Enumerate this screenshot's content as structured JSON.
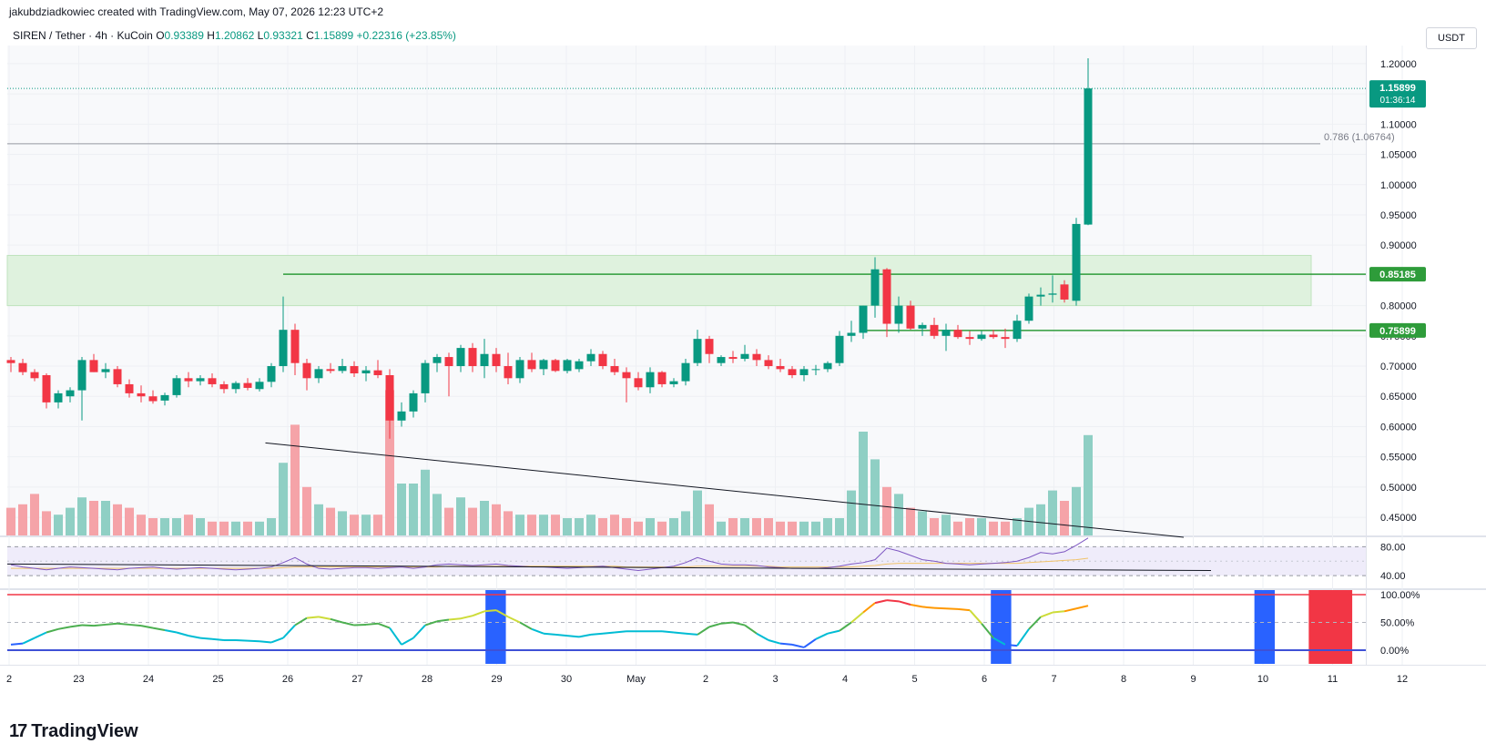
{
  "header": {
    "caption": "jakubdziadkowiec created with TradingView.com, May 07, 2026 12:23 UTC+2",
    "symbol": "SIREN / Tether · 4h · KuCoin",
    "o_label": "O",
    "o": "0.93389",
    "h_label": "H",
    "h": "1.20862",
    "l_label": "L",
    "l": "0.93321",
    "c_label": "C",
    "c": "1.15899",
    "change": "+0.22316 (+23.85%)",
    "currency": "USDT"
  },
  "logo": {
    "text": "TradingView",
    "icon": "tradingview-logo-icon"
  },
  "colors": {
    "up": "#089981",
    "down": "#f23645",
    "upVol": "#8fcfc4",
    "downVol": "#f5a3a8",
    "zone": "#dff2de",
    "level": "#2e9c3a"
  },
  "chart_data": [
    {
      "type": "candlestick",
      "x_ticks": [
        "2",
        "23",
        "24",
        "25",
        "26",
        "27",
        "28",
        "29",
        "30",
        "May",
        "2",
        "3",
        "4",
        "5",
        "6",
        "7",
        "8",
        "9",
        "10",
        "11",
        "12"
      ],
      "y_ticks": [
        "1.20000",
        "1.15000",
        "1.10000",
        "1.05000",
        "1.00000",
        "0.95000",
        "0.90000",
        "0.85000",
        "0.80000",
        "0.75000",
        "0.70000",
        "0.65000",
        "0.60000",
        "0.55000",
        "0.50000",
        "0.45000"
      ],
      "ylim": [
        0.42,
        1.23
      ],
      "last_price": "1.15899",
      "countdown": "01:36:14",
      "levels": [
        {
          "label": "0.85185",
          "value": 0.85185
        },
        {
          "label": "0.75899",
          "value": 0.75899
        }
      ],
      "fib": {
        "label": "0.786 (1.06764)",
        "value": 1.06764
      },
      "zone": [
        0.8,
        0.883
      ],
      "trendline": [
        [
          0.5846,
          0.573
        ],
        [
          1.0,
          0.417
        ]
      ],
      "candles": [
        [
          0.71,
          0.715,
          0.69,
          0.705
        ],
        [
          0.705,
          0.712,
          0.685,
          0.69
        ],
        [
          0.69,
          0.695,
          0.675,
          0.68
        ],
        [
          0.685,
          0.688,
          0.63,
          0.64
        ],
        [
          0.64,
          0.66,
          0.63,
          0.655
        ],
        [
          0.65,
          0.665,
          0.64,
          0.66
        ],
        [
          0.66,
          0.715,
          0.61,
          0.71
        ],
        [
          0.71,
          0.72,
          0.69,
          0.69
        ],
        [
          0.69,
          0.705,
          0.68,
          0.695
        ],
        [
          0.695,
          0.7,
          0.665,
          0.67
        ],
        [
          0.67,
          0.678,
          0.648,
          0.655
        ],
        [
          0.655,
          0.668,
          0.64,
          0.65
        ],
        [
          0.65,
          0.66,
          0.638,
          0.642
        ],
        [
          0.643,
          0.656,
          0.635,
          0.652
        ],
        [
          0.652,
          0.685,
          0.648,
          0.68
        ],
        [
          0.68,
          0.69,
          0.665,
          0.675
        ],
        [
          0.675,
          0.685,
          0.668,
          0.68
        ],
        [
          0.68,
          0.688,
          0.665,
          0.67
        ],
        [
          0.67,
          0.675,
          0.655,
          0.662
        ],
        [
          0.662,
          0.675,
          0.655,
          0.672
        ],
        [
          0.672,
          0.68,
          0.66,
          0.664
        ],
        [
          0.662,
          0.68,
          0.658,
          0.674
        ],
        [
          0.674,
          0.705,
          0.665,
          0.7
        ],
        [
          0.7,
          0.815,
          0.69,
          0.76
        ],
        [
          0.76,
          0.77,
          0.685,
          0.705
        ],
        [
          0.705,
          0.712,
          0.66,
          0.68
        ],
        [
          0.68,
          0.7,
          0.672,
          0.695
        ],
        [
          0.695,
          0.705,
          0.688,
          0.692
        ],
        [
          0.692,
          0.712,
          0.688,
          0.7
        ],
        [
          0.7,
          0.708,
          0.682,
          0.688
        ],
        [
          0.688,
          0.7,
          0.675,
          0.693
        ],
        [
          0.693,
          0.71,
          0.68,
          0.685
        ],
        [
          0.685,
          0.695,
          0.58,
          0.61
        ],
        [
          0.61,
          0.64,
          0.6,
          0.625
        ],
        [
          0.625,
          0.66,
          0.615,
          0.655
        ],
        [
          0.655,
          0.71,
          0.64,
          0.705
        ],
        [
          0.705,
          0.72,
          0.69,
          0.715
        ],
        [
          0.715,
          0.722,
          0.65,
          0.7
        ],
        [
          0.7,
          0.735,
          0.69,
          0.73
        ],
        [
          0.73,
          0.738,
          0.69,
          0.7
        ],
        [
          0.7,
          0.745,
          0.68,
          0.72
        ],
        [
          0.72,
          0.73,
          0.69,
          0.7
        ],
        [
          0.7,
          0.722,
          0.67,
          0.68
        ],
        [
          0.68,
          0.715,
          0.672,
          0.71
        ],
        [
          0.71,
          0.722,
          0.69,
          0.695
        ],
        [
          0.695,
          0.712,
          0.685,
          0.71
        ],
        [
          0.71,
          0.712,
          0.69,
          0.692
        ],
        [
          0.692,
          0.712,
          0.688,
          0.71
        ],
        [
          0.695,
          0.712,
          0.69,
          0.708
        ],
        [
          0.708,
          0.728,
          0.7,
          0.72
        ],
        [
          0.72,
          0.725,
          0.695,
          0.7
        ],
        [
          0.7,
          0.712,
          0.685,
          0.69
        ],
        [
          0.69,
          0.698,
          0.64,
          0.68
        ],
        [
          0.68,
          0.69,
          0.66,
          0.665
        ],
        [
          0.665,
          0.698,
          0.655,
          0.69
        ],
        [
          0.69,
          0.692,
          0.665,
          0.67
        ],
        [
          0.67,
          0.68,
          0.665,
          0.675
        ],
        [
          0.675,
          0.712,
          0.668,
          0.705
        ],
        [
          0.705,
          0.76,
          0.7,
          0.745
        ],
        [
          0.745,
          0.75,
          0.705,
          0.72
        ],
        [
          0.705,
          0.718,
          0.7,
          0.715
        ],
        [
          0.715,
          0.725,
          0.705,
          0.712
        ],
        [
          0.712,
          0.735,
          0.708,
          0.72
        ],
        [
          0.72,
          0.728,
          0.7,
          0.71
        ],
        [
          0.71,
          0.718,
          0.695,
          0.7
        ],
        [
          0.7,
          0.712,
          0.69,
          0.695
        ],
        [
          0.695,
          0.7,
          0.68,
          0.685
        ],
        [
          0.685,
          0.7,
          0.675,
          0.695
        ],
        [
          0.695,
          0.702,
          0.685,
          0.695
        ],
        [
          0.695,
          0.708,
          0.69,
          0.705
        ],
        [
          0.705,
          0.758,
          0.7,
          0.75
        ],
        [
          0.75,
          0.775,
          0.74,
          0.755
        ],
        [
          0.755,
          0.8,
          0.745,
          0.8
        ],
        [
          0.8,
          0.88,
          0.78,
          0.86
        ],
        [
          0.86,
          0.862,
          0.748,
          0.77
        ],
        [
          0.77,
          0.815,
          0.755,
          0.8
        ],
        [
          0.8,
          0.808,
          0.76,
          0.762
        ],
        [
          0.762,
          0.772,
          0.75,
          0.768
        ],
        [
          0.768,
          0.78,
          0.745,
          0.75
        ],
        [
          0.75,
          0.77,
          0.725,
          0.76
        ],
        [
          0.76,
          0.768,
          0.745,
          0.748
        ],
        [
          0.748,
          0.758,
          0.735,
          0.745
        ],
        [
          0.745,
          0.758,
          0.742,
          0.752
        ],
        [
          0.752,
          0.76,
          0.745,
          0.748
        ],
        [
          0.748,
          0.762,
          0.73,
          0.745
        ],
        [
          0.745,
          0.785,
          0.74,
          0.775
        ],
        [
          0.775,
          0.82,
          0.77,
          0.815
        ],
        [
          0.815,
          0.83,
          0.8,
          0.818
        ],
        [
          0.818,
          0.85,
          0.805,
          0.82
        ],
        [
          0.835,
          0.842,
          0.805,
          0.81
        ],
        [
          0.808,
          0.945,
          0.8,
          0.935
        ],
        [
          0.934,
          1.209,
          0.933,
          1.159
        ]
      ],
      "volume_levels": [
        0.08,
        0.09,
        0.12,
        0.07,
        0.06,
        0.08,
        0.11,
        0.1,
        0.1,
        0.09,
        0.08,
        0.06,
        0.05,
        0.05,
        0.05,
        0.06,
        0.05,
        0.04,
        0.04,
        0.04,
        0.04,
        0.04,
        0.05,
        0.21,
        0.32,
        0.14,
        0.09,
        0.08,
        0.07,
        0.06,
        0.06,
        0.06,
        0.42,
        0.15,
        0.15,
        0.19,
        0.12,
        0.08,
        0.11,
        0.08,
        0.1,
        0.09,
        0.07,
        0.06,
        0.06,
        0.06,
        0.06,
        0.05,
        0.05,
        0.06,
        0.05,
        0.06,
        0.05,
        0.04,
        0.05,
        0.04,
        0.05,
        0.07,
        0.13,
        0.09,
        0.04,
        0.05,
        0.05,
        0.05,
        0.05,
        0.04,
        0.04,
        0.04,
        0.04,
        0.05,
        0.05,
        0.13,
        0.3,
        0.22,
        0.14,
        0.12,
        0.08,
        0.07,
        0.05,
        0.06,
        0.04,
        0.05,
        0.05,
        0.04,
        0.04,
        0.05,
        0.08,
        0.09,
        0.13,
        0.1,
        0.14,
        0.29
      ]
    },
    {
      "type": "line",
      "name": "oscillator-1",
      "y_ticks": [
        "80.00",
        "40.00"
      ],
      "ylim": [
        25,
        88
      ],
      "values": [
        55,
        52,
        50,
        48,
        50,
        52,
        51,
        50,
        49,
        48,
        50,
        51,
        52,
        50,
        49,
        50,
        51,
        50,
        49,
        48,
        49,
        50,
        52,
        58,
        65,
        56,
        50,
        49,
        50,
        51,
        51,
        50,
        51,
        52,
        50,
        52,
        55,
        56,
        55,
        54,
        55,
        56,
        54,
        53,
        52,
        52,
        51,
        50,
        51,
        52,
        53,
        51,
        49,
        47,
        49,
        51,
        53,
        58,
        65,
        60,
        56,
        55,
        55,
        54,
        52,
        51,
        50,
        50,
        50,
        51,
        53,
        56,
        58,
        62,
        78,
        74,
        68,
        62,
        60,
        57,
        56,
        55,
        56,
        57,
        58,
        60,
        65,
        72,
        70,
        73,
        82,
        92
      ],
      "signal": [
        50,
        50,
        50,
        50,
        50,
        50,
        50,
        50,
        50,
        50,
        50,
        50,
        50,
        50,
        50,
        50,
        50,
        50,
        50,
        50,
        50,
        50,
        50,
        51,
        52,
        52,
        52,
        52,
        52,
        52,
        52,
        52,
        52,
        52,
        52,
        52,
        52,
        53,
        53,
        53,
        53,
        53,
        53,
        53,
        53,
        53,
        53,
        53,
        53,
        53,
        53,
        53,
        52,
        52,
        52,
        52,
        52,
        52,
        53,
        53,
        53,
        53,
        53,
        53,
        53,
        52,
        52,
        52,
        52,
        52,
        52,
        52,
        53,
        54,
        56,
        57,
        57,
        57,
        57,
        57,
        57,
        57,
        57,
        57,
        57,
        57,
        58,
        59,
        60,
        61,
        62,
        64
      ]
    },
    {
      "type": "line",
      "name": "oscillator-2",
      "y_ticks": [
        "100.00%",
        "50.00%",
        "0.00%"
      ],
      "ylim": [
        0,
        100
      ],
      "values": [
        10,
        12,
        22,
        32,
        38,
        42,
        45,
        44,
        46,
        48,
        46,
        44,
        40,
        36,
        32,
        26,
        22,
        20,
        18,
        18,
        17,
        16,
        14,
        22,
        45,
        58,
        60,
        56,
        50,
        45,
        46,
        48,
        40,
        10,
        22,
        45,
        52,
        55,
        57,
        62,
        70,
        72,
        60,
        50,
        38,
        30,
        28,
        26,
        24,
        28,
        30,
        32,
        34,
        34,
        34,
        34,
        32,
        30,
        28,
        42,
        48,
        50,
        45,
        30,
        18,
        12,
        10,
        5,
        20,
        30,
        35,
        50,
        68,
        85,
        90,
        88,
        82,
        78,
        76,
        75,
        74,
        72,
        48,
        22,
        10,
        8,
        38,
        60,
        68,
        70,
        75,
        80
      ],
      "highlights": [
        {
          "start": 0.352,
          "end": 0.367,
          "color": "#2962ff"
        },
        {
          "start": 0.724,
          "end": 0.739,
          "color": "#2962ff"
        },
        {
          "start": 0.918,
          "end": 0.933,
          "color": "#2962ff"
        },
        {
          "start": 0.958,
          "end": 0.99,
          "color": "#f23645"
        }
      ]
    }
  ]
}
